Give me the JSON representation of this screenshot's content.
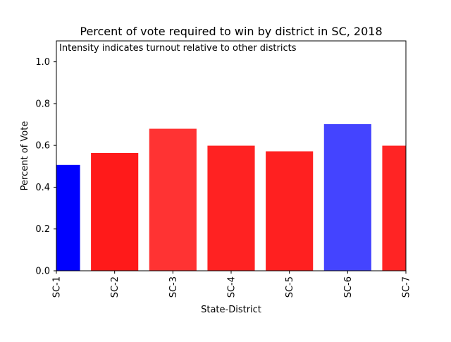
{
  "chart_data": {
    "type": "bar",
    "title": "Percent of vote required to win by district in SC, 2018",
    "annotation": "Intensity indicates turnout relative to other districts",
    "xlabel": "State-District",
    "ylabel": "Percent of Vote",
    "ylim": [
      0,
      1.1
    ],
    "yticks": [
      "0.0",
      "0.2",
      "0.4",
      "0.6",
      "0.8",
      "1.0"
    ],
    "ytick_values": [
      0,
      0.2,
      0.4,
      0.6,
      0.8,
      1.0
    ],
    "categories": [
      "SC-1",
      "SC-2",
      "SC-3",
      "SC-4",
      "SC-5",
      "SC-6",
      "SC-7"
    ],
    "values": [
      0.505,
      0.562,
      0.678,
      0.597,
      0.57,
      0.7,
      0.597
    ],
    "colors": [
      "#0000ff",
      "#ff1a1a",
      "#ff3333",
      "#ff2222",
      "#ff2020",
      "#4444ff",
      "#ff2424"
    ],
    "grid": false
  }
}
